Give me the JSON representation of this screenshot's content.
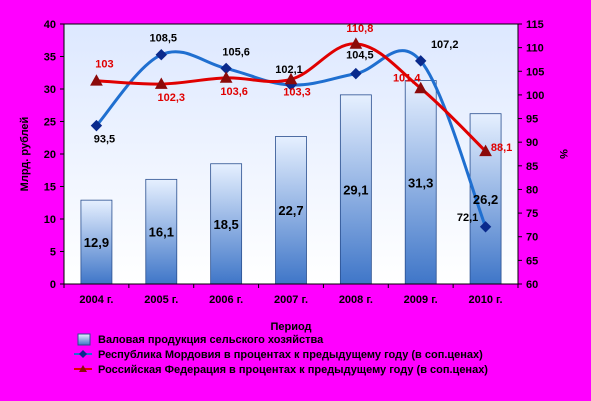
{
  "chart_data": {
    "type": "bar",
    "categories": [
      "2004 г.",
      "2005 г.",
      "2006 г.",
      "2007 г.",
      "2008 г.",
      "2009 г.",
      "2010 г."
    ],
    "xlabel": "Период",
    "ylabel": "Млрд. рублей",
    "y2label": "%",
    "ylim": [
      0,
      40
    ],
    "y_ticks": [
      0,
      5,
      10,
      15,
      20,
      25,
      30,
      35,
      40
    ],
    "y2lim": [
      60,
      115
    ],
    "y2_ticks": [
      60,
      65,
      70,
      75,
      80,
      85,
      90,
      95,
      100,
      105,
      110,
      115
    ],
    "grid": false,
    "legend_position": "bottom",
    "series": [
      {
        "name": "Валовая продукция сельского хозяйства",
        "kind": "bar",
        "axis": "left",
        "values": [
          12.9,
          16.1,
          18.5,
          22.7,
          29.1,
          31.3,
          26.2
        ],
        "labels": [
          "12,9",
          "16,1",
          "18,5",
          "22,7",
          "29,1",
          "31,3",
          "26,2"
        ],
        "color": "#5B8FD6"
      },
      {
        "name": "Республика Мордовия в процентах к предыдущему году (в соп.ценах)",
        "kind": "line",
        "axis": "right",
        "values": [
          93.5,
          108.5,
          105.6,
          102.1,
          104.5,
          107.2,
          72.1
        ],
        "labels": [
          "93,5",
          "108,5",
          "105,6",
          "102,1",
          "104,5",
          "107,2",
          "72,1"
        ],
        "color": "#1F6FD0",
        "marker": "diamond"
      },
      {
        "name": "Российская Федерация в процентах к предыдущему году (в соп.ценах)",
        "kind": "line",
        "axis": "right",
        "values": [
          103,
          102.3,
          103.6,
          103.3,
          110.8,
          101.4,
          88.1
        ],
        "labels": [
          "103",
          "102,3",
          "103,6",
          "103,3",
          "110,8",
          "101,4",
          "88,1"
        ],
        "color": "#E00000",
        "marker": "triangle"
      }
    ]
  }
}
